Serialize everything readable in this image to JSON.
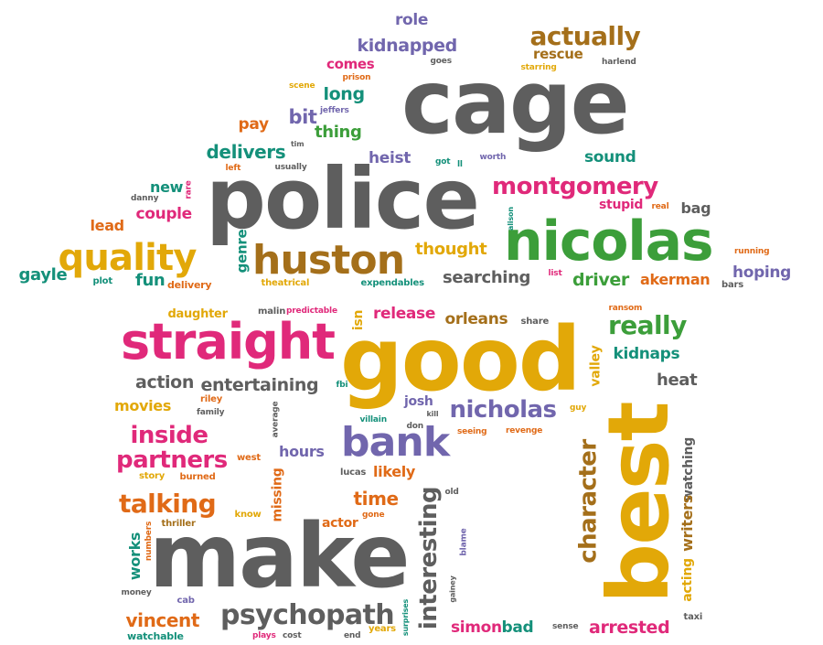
{
  "colors": {
    "gray": "#5e5e5e",
    "yellow": "#e2a808",
    "magenta": "#e0297a",
    "green": "#3c9e3a",
    "teal": "#14907a",
    "purple": "#7166ad",
    "orange": "#e06a17",
    "brown": "#a46f1a"
  },
  "words": [
    {
      "text": "cage",
      "color": "gray"
    },
    {
      "text": "police",
      "color": "gray"
    },
    {
      "text": "make",
      "color": "gray"
    },
    {
      "text": "good",
      "color": "yellow"
    },
    {
      "text": "best",
      "color": "yellow"
    },
    {
      "text": "nicolas",
      "color": "green"
    },
    {
      "text": "straight",
      "color": "magenta"
    },
    {
      "text": "huston",
      "color": "brown"
    },
    {
      "text": "quality",
      "color": "yellow"
    },
    {
      "text": "bank",
      "color": "purple"
    },
    {
      "text": "montgomery",
      "color": "magenta"
    },
    {
      "text": "psychopath",
      "color": "gray"
    },
    {
      "text": "interesting",
      "color": "gray"
    },
    {
      "text": "character",
      "color": "brown"
    },
    {
      "text": "talking",
      "color": "orange"
    },
    {
      "text": "nicholas",
      "color": "purple"
    },
    {
      "text": "partners",
      "color": "magenta"
    },
    {
      "text": "inside",
      "color": "magenta"
    },
    {
      "text": "actually",
      "color": "brown"
    },
    {
      "text": "really",
      "color": "green"
    },
    {
      "text": "action",
      "color": "gray"
    },
    {
      "text": "entertaining",
      "color": "gray"
    },
    {
      "text": "release",
      "color": "magenta"
    },
    {
      "text": "orleans",
      "color": "brown"
    },
    {
      "text": "searching",
      "color": "gray"
    },
    {
      "text": "driver",
      "color": "green"
    },
    {
      "text": "akerman",
      "color": "orange"
    },
    {
      "text": "hoping",
      "color": "purple"
    },
    {
      "text": "kidnapped",
      "color": "purple"
    },
    {
      "text": "role",
      "color": "purple"
    },
    {
      "text": "rescue",
      "color": "brown"
    },
    {
      "text": "comes",
      "color": "magenta"
    },
    {
      "text": "long",
      "color": "teal"
    },
    {
      "text": "bit",
      "color": "purple"
    },
    {
      "text": "pay",
      "color": "orange"
    },
    {
      "text": "thing",
      "color": "green"
    },
    {
      "text": "delivers",
      "color": "teal"
    },
    {
      "text": "heist",
      "color": "purple"
    },
    {
      "text": "sound",
      "color": "teal"
    },
    {
      "text": "couple",
      "color": "magenta"
    },
    {
      "text": "lead",
      "color": "orange"
    },
    {
      "text": "new",
      "color": "teal"
    },
    {
      "text": "gayle",
      "color": "teal"
    },
    {
      "text": "fun",
      "color": "teal"
    },
    {
      "text": "genre",
      "color": "teal"
    },
    {
      "text": "thought",
      "color": "yellow"
    },
    {
      "text": "stupid",
      "color": "magenta"
    },
    {
      "text": "bag",
      "color": "gray"
    },
    {
      "text": "movies",
      "color": "yellow"
    },
    {
      "text": "hours",
      "color": "purple"
    },
    {
      "text": "time",
      "color": "orange"
    },
    {
      "text": "likely",
      "color": "orange"
    },
    {
      "text": "missing",
      "color": "orange"
    },
    {
      "text": "vincent",
      "color": "orange"
    },
    {
      "text": "works",
      "color": "teal"
    },
    {
      "text": "arrested",
      "color": "magenta"
    },
    {
      "text": "simon",
      "color": "magenta"
    },
    {
      "text": "bad",
      "color": "teal"
    },
    {
      "text": "heat",
      "color": "gray"
    },
    {
      "text": "kidnaps",
      "color": "teal"
    },
    {
      "text": "valley",
      "color": "yellow"
    },
    {
      "text": "watching",
      "color": "gray"
    },
    {
      "text": "writers",
      "color": "brown"
    },
    {
      "text": "acting",
      "color": "yellow"
    },
    {
      "text": "josh",
      "color": "purple"
    },
    {
      "text": "isn",
      "color": "yellow"
    },
    {
      "text": "actor",
      "color": "orange"
    },
    {
      "text": "daughter",
      "color": "yellow"
    },
    {
      "text": "expendables",
      "color": "teal"
    },
    {
      "text": "watchable",
      "color": "teal"
    },
    {
      "text": "delivery",
      "color": "orange"
    },
    {
      "text": "plot",
      "color": "teal"
    },
    {
      "text": "theatrical",
      "color": "yellow"
    },
    {
      "text": "malin",
      "color": "gray"
    },
    {
      "text": "predictable",
      "color": "magenta"
    },
    {
      "text": "riley",
      "color": "orange"
    },
    {
      "text": "family",
      "color": "gray"
    },
    {
      "text": "west",
      "color": "orange"
    },
    {
      "text": "story",
      "color": "yellow"
    },
    {
      "text": "burned",
      "color": "orange"
    },
    {
      "text": "thriller",
      "color": "brown"
    },
    {
      "text": "numbers",
      "color": "orange"
    },
    {
      "text": "money",
      "color": "gray"
    },
    {
      "text": "cab",
      "color": "purple"
    },
    {
      "text": "plays",
      "color": "magenta"
    },
    {
      "text": "cost",
      "color": "gray"
    },
    {
      "text": "end",
      "color": "gray"
    },
    {
      "text": "years",
      "color": "yellow"
    },
    {
      "text": "surprises",
      "color": "teal"
    },
    {
      "text": "gainey",
      "color": "gray"
    },
    {
      "text": "blame",
      "color": "purple"
    },
    {
      "text": "old",
      "color": "gray"
    },
    {
      "text": "lucas",
      "color": "gray"
    },
    {
      "text": "seeing",
      "color": "orange"
    },
    {
      "text": "revenge",
      "color": "orange"
    },
    {
      "text": "don",
      "color": "gray"
    },
    {
      "text": "villain",
      "color": "teal"
    },
    {
      "text": "kill",
      "color": "gray"
    },
    {
      "text": "fbi",
      "color": "teal"
    },
    {
      "text": "average",
      "color": "gray"
    },
    {
      "text": "know",
      "color": "yellow"
    },
    {
      "text": "gone",
      "color": "orange"
    },
    {
      "text": "guy",
      "color": "yellow"
    },
    {
      "text": "share",
      "color": "gray"
    },
    {
      "text": "ransom",
      "color": "orange"
    },
    {
      "text": "list",
      "color": "magenta"
    },
    {
      "text": "sense",
      "color": "gray"
    },
    {
      "text": "taxi",
      "color": "gray"
    },
    {
      "text": "bars",
      "color": "gray"
    },
    {
      "text": "running",
      "color": "orange"
    },
    {
      "text": "real",
      "color": "orange"
    },
    {
      "text": "alison",
      "color": "teal"
    },
    {
      "text": "worth",
      "color": "purple"
    },
    {
      "text": "got",
      "color": "teal"
    },
    {
      "text": "ll",
      "color": "teal"
    },
    {
      "text": "usually",
      "color": "gray"
    },
    {
      "text": "tim",
      "color": "gray"
    },
    {
      "text": "left",
      "color": "orange"
    },
    {
      "text": "danny",
      "color": "gray"
    },
    {
      "text": "rare",
      "color": "magenta"
    },
    {
      "text": "scene",
      "color": "yellow"
    },
    {
      "text": "jeffers",
      "color": "purple"
    },
    {
      "text": "prison",
      "color": "orange"
    },
    {
      "text": "goes",
      "color": "gray"
    },
    {
      "text": "starring",
      "color": "yellow"
    },
    {
      "text": "harlend",
      "color": "gray"
    }
  ]
}
